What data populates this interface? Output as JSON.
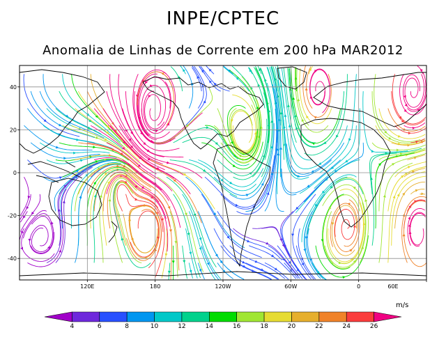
{
  "header": {
    "title": "INPE/CPTEC",
    "subtitle": "Anomalia de Linhas de Corrente em 200 hPa MAR2012"
  },
  "map": {
    "projection": "cylindrical",
    "lon_range": [
      60,
      420
    ],
    "lat_range": [
      -50,
      50
    ],
    "lat_ticks": [
      {
        "value": 40,
        "label": "40"
      },
      {
        "value": 20,
        "label": "20"
      },
      {
        "value": 0,
        "label": "0"
      },
      {
        "value": -20,
        "label": "-20"
      },
      {
        "value": -40,
        "label": "-40"
      }
    ],
    "lon_ticks": [
      {
        "value": 120,
        "label": "120E"
      },
      {
        "value": 180,
        "label": "180"
      },
      {
        "value": 240,
        "label": "120W"
      },
      {
        "value": 300,
        "label": "60W"
      },
      {
        "value": 360,
        "label": "0"
      },
      {
        "value": 420,
        "label": "60E"
      }
    ],
    "grid_lats": [
      40,
      20,
      0,
      -20,
      -40
    ],
    "grid_lons": [
      120,
      180,
      240,
      300,
      360,
      420
    ],
    "vortices": [
      {
        "name": "north-pacific-anticyclone",
        "lon": 178,
        "lat": 28,
        "intensity": 0.9
      },
      {
        "name": "north-atlantic-cyclone",
        "lon": 325,
        "lat": 38,
        "intensity": 0.6
      },
      {
        "name": "europe-cyclone",
        "lon": 408,
        "lat": 38,
        "intensity": 0.7
      },
      {
        "name": "south-pacific-cyclone",
        "lon": 175,
        "lat": -25,
        "intensity": 0.6
      },
      {
        "name": "south-atlantic-cyclone",
        "lon": 350,
        "lat": -25,
        "intensity": 0.5
      },
      {
        "name": "south-indian-anticyclone",
        "lon": 412,
        "lat": -27,
        "intensity": 0.6
      },
      {
        "name": "east-pacific-cyclone",
        "lon": 260,
        "lat": 18,
        "intensity": 0.4
      },
      {
        "name": "equatorial-west-pacific",
        "lon": 150,
        "lat": -8,
        "intensity": 0.3
      }
    ]
  },
  "colorbar": {
    "units": "m/s",
    "labels": [
      "4",
      "6",
      "8",
      "10",
      "12",
      "14",
      "16",
      "18",
      "20",
      "22",
      "24",
      "26"
    ],
    "colors": [
      "#a000c8",
      "#6e28dc",
      "#2850ff",
      "#0096f0",
      "#00c8c8",
      "#00d28c",
      "#00dc00",
      "#a0e632",
      "#e6dc32",
      "#e6af2d",
      "#f08228",
      "#fa3c3c",
      "#f00082"
    ]
  }
}
